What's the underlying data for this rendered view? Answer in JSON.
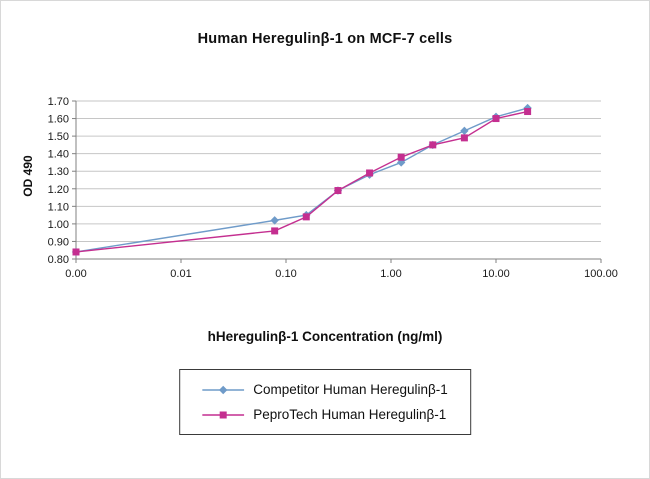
{
  "title": "Human Heregulinβ-1 on MCF-7 cells",
  "chart_data": {
    "type": "line",
    "title": "Human Heregulinβ-1 on MCF-7 cells",
    "xlabel": "hHeregulinβ-1 Concentration (ng/ml)",
    "ylabel": "OD 490",
    "x_scale": "log",
    "x_axis_min_effective": 0.001,
    "x_ticks": [
      "0.00",
      "0.01",
      "0.10",
      "1.00",
      "10.00",
      "100.00"
    ],
    "y_ticks": [
      "0.80",
      "0.90",
      "1.00",
      "1.10",
      "1.20",
      "1.30",
      "1.40",
      "1.50",
      "1.60",
      "1.70"
    ],
    "ylim": [
      0.8,
      1.7
    ],
    "grid": "horizontal",
    "legend_position": "bottom",
    "x": [
      0,
      0.078,
      0.156,
      0.3125,
      0.625,
      1.25,
      2.5,
      5,
      10,
      20
    ],
    "series": [
      {
        "name": "Competitor Human Heregulinβ-1",
        "color": "#6f9bc9",
        "marker": "diamond",
        "values": [
          0.84,
          1.02,
          1.05,
          1.19,
          1.28,
          1.35,
          1.45,
          1.53,
          1.61,
          1.66
        ]
      },
      {
        "name": "PeproTech Human Heregulinβ-1",
        "color": "#c42f90",
        "marker": "square",
        "values": [
          0.84,
          0.96,
          1.04,
          1.19,
          1.29,
          1.38,
          1.45,
          1.49,
          1.6,
          1.64
        ]
      }
    ],
    "axis_color": "#808080",
    "grid_color": "#c6c6c6",
    "tick_label_color": "#1a1a1a"
  }
}
